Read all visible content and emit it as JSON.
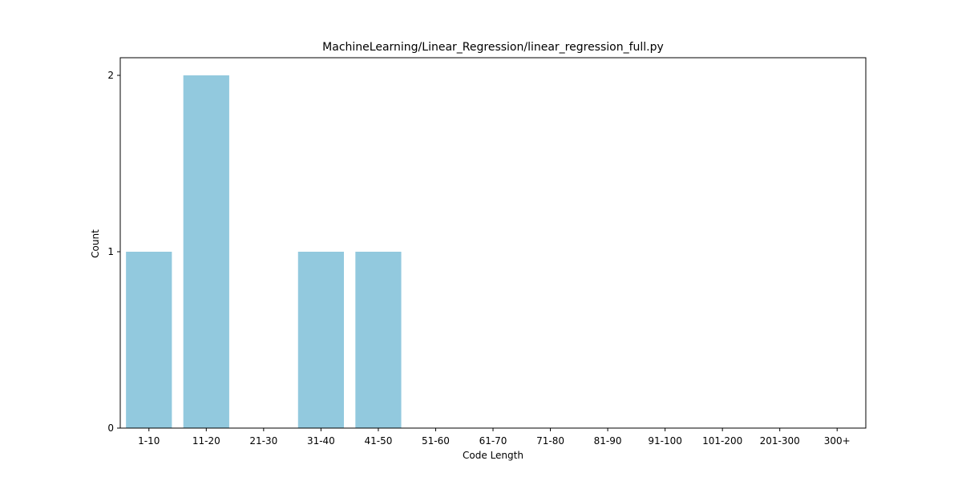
{
  "chart_data": {
    "type": "bar",
    "title": "MachineLearning/Linear_Regression/linear_regression_full.py",
    "xlabel": "Code Length",
    "ylabel": "Count",
    "categories": [
      "1-10",
      "11-20",
      "21-30",
      "31-40",
      "41-50",
      "51-60",
      "61-70",
      "71-80",
      "81-90",
      "91-100",
      "101-200",
      "201-300",
      "300+"
    ],
    "values": [
      1,
      2,
      0,
      1,
      1,
      0,
      0,
      0,
      0,
      0,
      0,
      0,
      0
    ],
    "ylim": [
      0,
      2.1
    ],
    "yticks": [
      0,
      1,
      2
    ],
    "bar_color": "#92c9de",
    "grid": false,
    "legend": "none"
  }
}
